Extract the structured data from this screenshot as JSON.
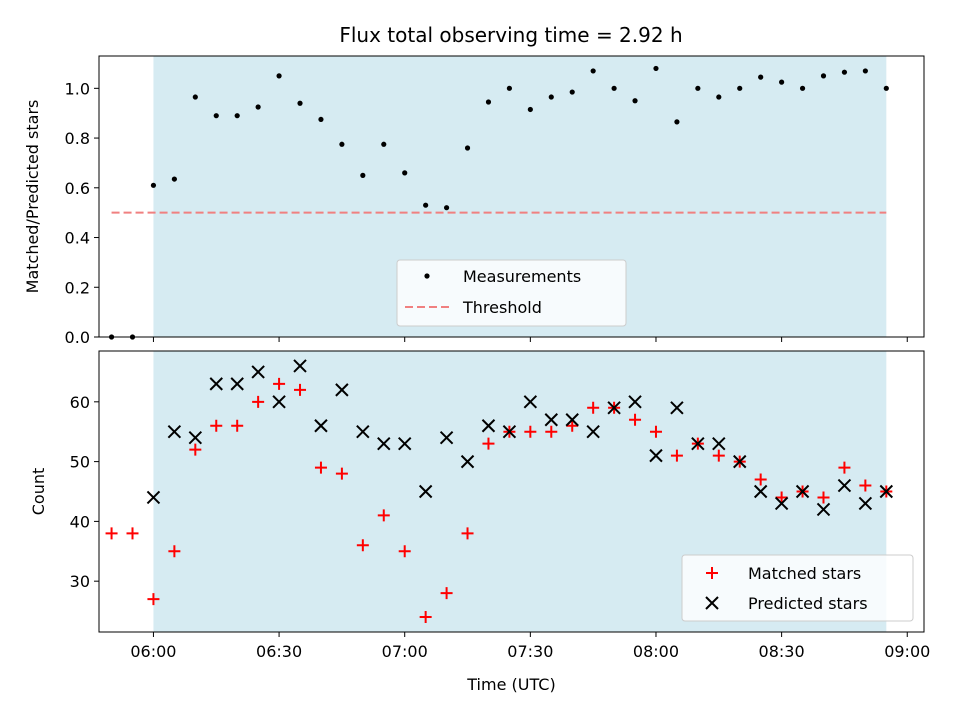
{
  "figure": {
    "title": "Flux total observing time = 2.92 h",
    "xlabel": "Time (UTC)"
  },
  "colors": {
    "shade": "#add8e6",
    "measurement": "#000000",
    "threshold": "#f08080",
    "matched": "#ff0000",
    "predicted": "#000000"
  },
  "chart_data": [
    {
      "type": "scatter",
      "ylabel": "Matched/Predicted stars",
      "xlim": [
        "05:47",
        "09:04"
      ],
      "ylim": [
        0,
        1.13
      ],
      "x_tick_labels": [],
      "y_tick_labels": [
        "0.0",
        "0.2",
        "0.4",
        "0.6",
        "0.8",
        "1.0"
      ],
      "shaded_interval": [
        "06:00",
        "08:55"
      ],
      "legend": {
        "placement": "lower-center",
        "entries": [
          "Measurements",
          "Threshold"
        ]
      },
      "threshold": {
        "name": "Threshold",
        "value": 0.5,
        "x_range": [
          "05:50",
          "08:55"
        ]
      },
      "series": [
        {
          "name": "Measurements",
          "marker": "dot",
          "x": [
            "05:50",
            "05:55",
            "06:00",
            "06:05",
            "06:10",
            "06:15",
            "06:20",
            "06:25",
            "06:30",
            "06:35",
            "06:40",
            "06:45",
            "06:50",
            "06:55",
            "07:00",
            "07:05",
            "07:10",
            "07:15",
            "07:20",
            "07:25",
            "07:30",
            "07:35",
            "07:40",
            "07:45",
            "07:50",
            "07:55",
            "08:00",
            "08:05",
            "08:10",
            "08:15",
            "08:20",
            "08:25",
            "08:30",
            "08:35",
            "08:40",
            "08:45",
            "08:50",
            "08:55"
          ],
          "y": [
            0.0,
            0.0,
            0.61,
            0.635,
            0.965,
            0.89,
            0.89,
            0.925,
            1.05,
            0.94,
            0.875,
            0.775,
            0.65,
            0.775,
            0.66,
            0.53,
            0.52,
            0.76,
            0.945,
            1.0,
            0.915,
            0.965,
            0.985,
            1.07,
            1.0,
            0.95,
            1.08,
            0.865,
            1.0,
            0.965,
            1.0,
            1.045,
            1.025,
            1.0,
            1.05,
            1.065,
            1.07,
            1.0
          ]
        }
      ]
    },
    {
      "type": "scatter",
      "ylabel": "Count",
      "xlim": [
        "05:47",
        "09:04"
      ],
      "ylim": [
        21.5,
        68.5
      ],
      "x_tick_labels": [
        "06:00",
        "06:30",
        "07:00",
        "07:30",
        "08:00",
        "08:30",
        "09:00"
      ],
      "y_tick_labels": [
        "30",
        "40",
        "50",
        "60"
      ],
      "shaded_interval": [
        "06:00",
        "08:55"
      ],
      "legend": {
        "placement": "lower-right",
        "entries": [
          "Matched stars",
          "Predicted stars"
        ]
      },
      "series": [
        {
          "name": "Matched stars",
          "marker": "plus",
          "x": [
            "05:50",
            "05:55",
            "06:00",
            "06:05",
            "06:10",
            "06:15",
            "06:20",
            "06:25",
            "06:30",
            "06:35",
            "06:40",
            "06:45",
            "06:50",
            "06:55",
            "07:00",
            "07:05",
            "07:10",
            "07:15",
            "07:20",
            "07:25",
            "07:30",
            "07:35",
            "07:40",
            "07:45",
            "07:50",
            "07:55",
            "08:00",
            "08:05",
            "08:10",
            "08:15",
            "08:20",
            "08:25",
            "08:30",
            "08:35",
            "08:40",
            "08:45",
            "08:50",
            "08:55"
          ],
          "y": [
            38,
            38,
            27,
            35,
            52,
            56,
            56,
            60,
            63,
            62,
            49,
            48,
            36,
            41,
            35,
            24,
            28,
            38,
            53,
            55,
            55,
            55,
            56,
            59,
            59,
            57,
            55,
            51,
            53,
            51,
            50,
            47,
            44,
            45,
            44,
            49,
            46,
            45
          ]
        },
        {
          "name": "Predicted stars",
          "marker": "x",
          "x": [
            "06:00",
            "06:05",
            "06:10",
            "06:15",
            "06:20",
            "06:25",
            "06:30",
            "06:35",
            "06:40",
            "06:45",
            "06:50",
            "06:55",
            "07:00",
            "07:05",
            "07:10",
            "07:15",
            "07:20",
            "07:25",
            "07:30",
            "07:35",
            "07:40",
            "07:45",
            "07:50",
            "07:55",
            "08:00",
            "08:05",
            "08:10",
            "08:15",
            "08:20",
            "08:25",
            "08:30",
            "08:35",
            "08:40",
            "08:45",
            "08:50",
            "08:55"
          ],
          "y": [
            44,
            55,
            54,
            63,
            63,
            65,
            60,
            66,
            56,
            62,
            55,
            53,
            53,
            45,
            54,
            50,
            56,
            55,
            60,
            57,
            57,
            55,
            59,
            60,
            51,
            59,
            53,
            53,
            50,
            45,
            43,
            45,
            42,
            46,
            43,
            45
          ]
        }
      ]
    }
  ]
}
